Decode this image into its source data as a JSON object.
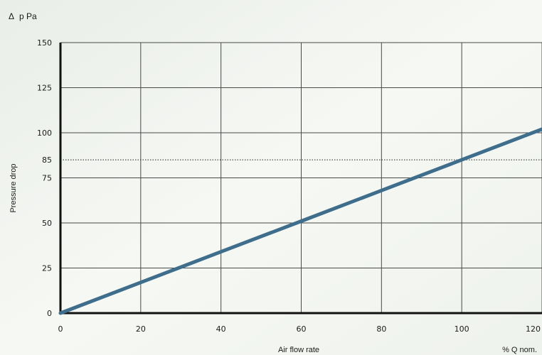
{
  "chart_data": {
    "type": "line",
    "title": "",
    "ylabel": "Pressure drop",
    "xlabel": "Air flow rate",
    "y_unit_symbol": "Δ",
    "y_unit_text": "p Pa",
    "x_unit_text": "% Q nom.",
    "xlim": [
      0,
      120
    ],
    "ylim": [
      0,
      150
    ],
    "x_ticks": [
      0,
      20,
      40,
      60,
      80,
      100,
      120
    ],
    "y_ticks": [
      0,
      25,
      50,
      75,
      100,
      125,
      150
    ],
    "grid": true,
    "series": [
      {
        "x": [
          0,
          20,
          40,
          60,
          80,
          100,
          120
        ],
        "y": [
          0,
          17,
          34,
          51,
          68,
          85,
          102
        ],
        "color": "#3f6d8c"
      }
    ],
    "reference_lines": [
      {
        "y": 85,
        "label": "85",
        "style": "dotted"
      }
    ],
    "colors": {
      "line": "#3f6d8c",
      "grid": "#4a4a4a",
      "axis": "#111111"
    }
  }
}
